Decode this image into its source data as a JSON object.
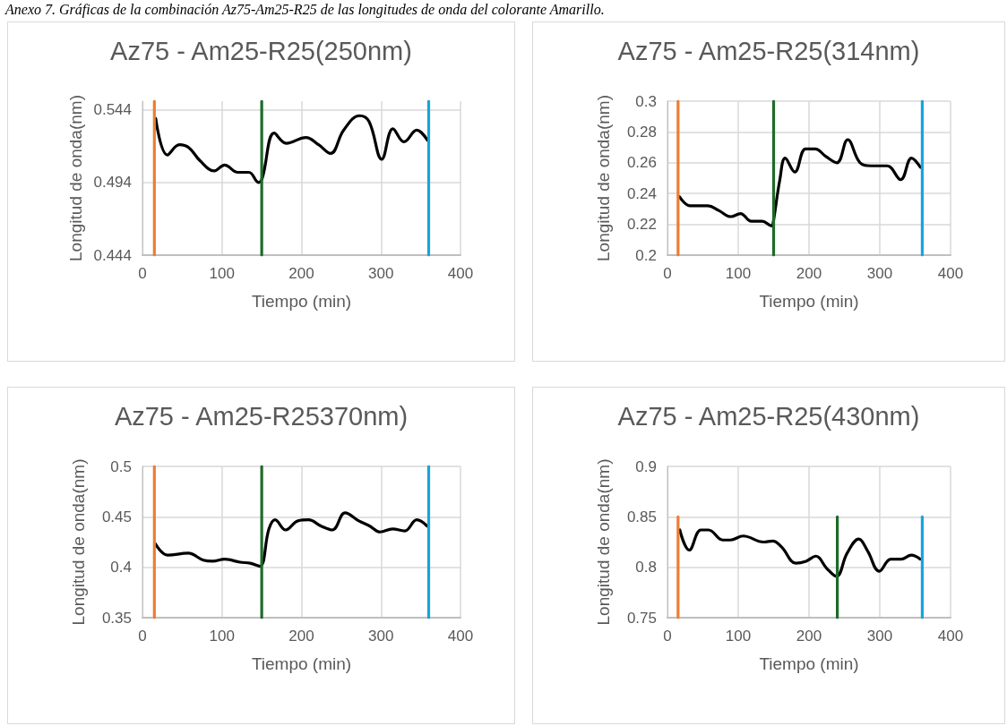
{
  "chart_data": [
    {
      "type": "line",
      "title": "Az75 - Am25-R25(250nm)",
      "xlabel": "Tiempo (min)",
      "ylabel": "Longitud de onda(nm)",
      "annotations": [
        "Anexo 7. Gráficas de la combinación Az75-Am25-R25 de las longitudes de onda del colorante Amarillo."
      ],
      "xlim": [
        0,
        400
      ],
      "xticks": [
        0,
        100,
        200,
        300,
        400
      ],
      "ylim": [
        0.444,
        0.55
      ],
      "yticks": [
        0.444,
        0.494,
        0.544
      ],
      "grid": true,
      "marker": "none",
      "line_style": "solid",
      "series": [
        {
          "color": "#000000",
          "x": [
            16.7,
            31.4,
            46.5,
            58.4,
            72.4,
            90.3,
            103.4,
            120,
            134,
            146,
            150.7,
            165.8,
            181,
            205.6,
            221.5,
            236.6,
            253,
            273,
            285,
            301,
            315,
            329,
            345,
            358.6
          ],
          "values": [
            0.538,
            0.513,
            0.52,
            0.518,
            0.509,
            0.502,
            0.506,
            0.501,
            0.501,
            0.494,
            0.497,
            0.528,
            0.521,
            0.525,
            0.52,
            0.514,
            0.53,
            0.54,
            0.536,
            0.51,
            0.531,
            0.522,
            0.53,
            0.523
          ]
        },
        {
          "color": "#ed7d31",
          "x": [
            15,
            15
          ],
          "values": [
            0.444,
            0.55
          ]
        },
        {
          "color": "#1e6b2a",
          "x": [
            150,
            150
          ],
          "values": [
            0.444,
            0.55
          ]
        },
        {
          "color": "#1aa3dc",
          "x": [
            360,
            360
          ],
          "values": [
            0.444,
            0.55
          ]
        }
      ]
    },
    {
      "type": "line",
      "title": "Az75 - Am25-R25(314nm)",
      "xlabel": "Tiempo (min)",
      "ylabel": "Longitud de onda(nm)",
      "xlim": [
        0,
        400
      ],
      "xticks": [
        0,
        100,
        200,
        300,
        400
      ],
      "ylim": [
        0.2,
        0.3
      ],
      "yticks": [
        0.2,
        0.22,
        0.24,
        0.26,
        0.28,
        0.3
      ],
      "grid": true,
      "marker": "none",
      "line_style": "solid",
      "series": [
        {
          "color": "#000000",
          "x": [
            16.9,
            32.2,
            57.2,
            72.5,
            89.8,
            103.2,
            118.5,
            133.9,
            147.3,
            149,
            158.8,
            166.4,
            179.9,
            195.2,
            208.7,
            224,
            239.4,
            254.7,
            272,
            287.3,
            310.4,
            329.5,
            344.8,
            357.5
          ],
          "values": [
            0.238,
            0.232,
            0.232,
            0.229,
            0.225,
            0.227,
            0.222,
            0.222,
            0.219,
            0.22,
            0.249,
            0.263,
            0.254,
            0.269,
            0.269,
            0.264,
            0.26,
            0.275,
            0.26,
            0.258,
            0.258,
            0.249,
            0.263,
            0.257
          ]
        },
        {
          "color": "#ed7d31",
          "x": [
            15,
            15
          ],
          "values": [
            0.2,
            0.3
          ]
        },
        {
          "color": "#1e6b2a",
          "x": [
            150,
            150
          ],
          "values": [
            0.2,
            0.3
          ]
        },
        {
          "color": "#1aa3dc",
          "x": [
            360,
            360
          ],
          "values": [
            0.2,
            0.3
          ]
        }
      ]
    },
    {
      "type": "line",
      "title": "Az75 - Am25-R25370nm)",
      "xlabel": "Tiempo (min)",
      "ylabel": "Longitud de onda(nm)",
      "xlim": [
        0,
        400
      ],
      "xticks": [
        0,
        100,
        200,
        300,
        400
      ],
      "ylim": [
        0.35,
        0.5
      ],
      "yticks": [
        0.35,
        0.4,
        0.45,
        0.5
      ],
      "grid": true,
      "marker": "none",
      "line_style": "solid",
      "series": [
        {
          "color": "#000000",
          "x": [
            16.5,
            31.8,
            57.5,
            76.7,
            88.2,
            103.5,
            122.7,
            135.4,
            147.6,
            159.1,
            166.8,
            180.2,
            195.5,
            208.9,
            224.3,
            238.8,
            254.9,
            272.2,
            285.6,
            299,
            314.5,
            329.8,
            345.1,
            357.8
          ],
          "values": [
            0.423,
            0.412,
            0.414,
            0.407,
            0.406,
            0.408,
            0.405,
            0.404,
            0.401,
            0.438,
            0.447,
            0.437,
            0.446,
            0.447,
            0.441,
            0.437,
            0.454,
            0.446,
            0.441,
            0.435,
            0.438,
            0.436,
            0.447,
            0.441
          ]
        },
        {
          "color": "#ed7d31",
          "x": [
            15,
            15
          ],
          "values": [
            0.35,
            0.5
          ]
        },
        {
          "color": "#1e6b2a",
          "x": [
            150,
            150
          ],
          "values": [
            0.35,
            0.5
          ]
        },
        {
          "color": "#1aa3dc",
          "x": [
            360,
            360
          ],
          "values": [
            0.35,
            0.5
          ]
        }
      ]
    },
    {
      "type": "line",
      "title": "Az75 - Am25-R25(430nm)",
      "xlabel": "Tiempo (min)",
      "ylabel": "Longitud de onda(nm)",
      "xlim": [
        0,
        400
      ],
      "xticks": [
        0,
        100,
        200,
        300,
        400
      ],
      "ylim": [
        0.75,
        0.9
      ],
      "yticks": [
        0.75,
        0.8,
        0.85,
        0.9
      ],
      "grid": true,
      "marker": "none",
      "line_style": "solid",
      "series": [
        {
          "color": "#000000",
          "x": [
            17.4,
            30.8,
            47.2,
            58,
            78,
            88.9,
            107,
            136,
            148.7,
            161.4,
            181.4,
            195.9,
            209.7,
            224.9,
            238.7,
            253.9,
            270.2,
            282.9,
            299.3,
            315.6,
            330.1,
            344.6,
            357.3
          ],
          "values": [
            0.837,
            0.817,
            0.837,
            0.837,
            0.827,
            0.827,
            0.831,
            0.825,
            0.826,
            0.82,
            0.804,
            0.806,
            0.811,
            0.799,
            0.791,
            0.814,
            0.828,
            0.816,
            0.796,
            0.808,
            0.808,
            0.812,
            0.808
          ]
        },
        {
          "color": "#ed7d31",
          "x": [
            15,
            15
          ],
          "values": [
            0.75,
            0.85
          ]
        },
        {
          "color": "#1e6b2a",
          "x": [
            240,
            240
          ],
          "values": [
            0.75,
            0.85
          ]
        },
        {
          "color": "#1aa3dc",
          "x": [
            360,
            360
          ],
          "values": [
            0.75,
            0.85
          ]
        }
      ]
    }
  ]
}
